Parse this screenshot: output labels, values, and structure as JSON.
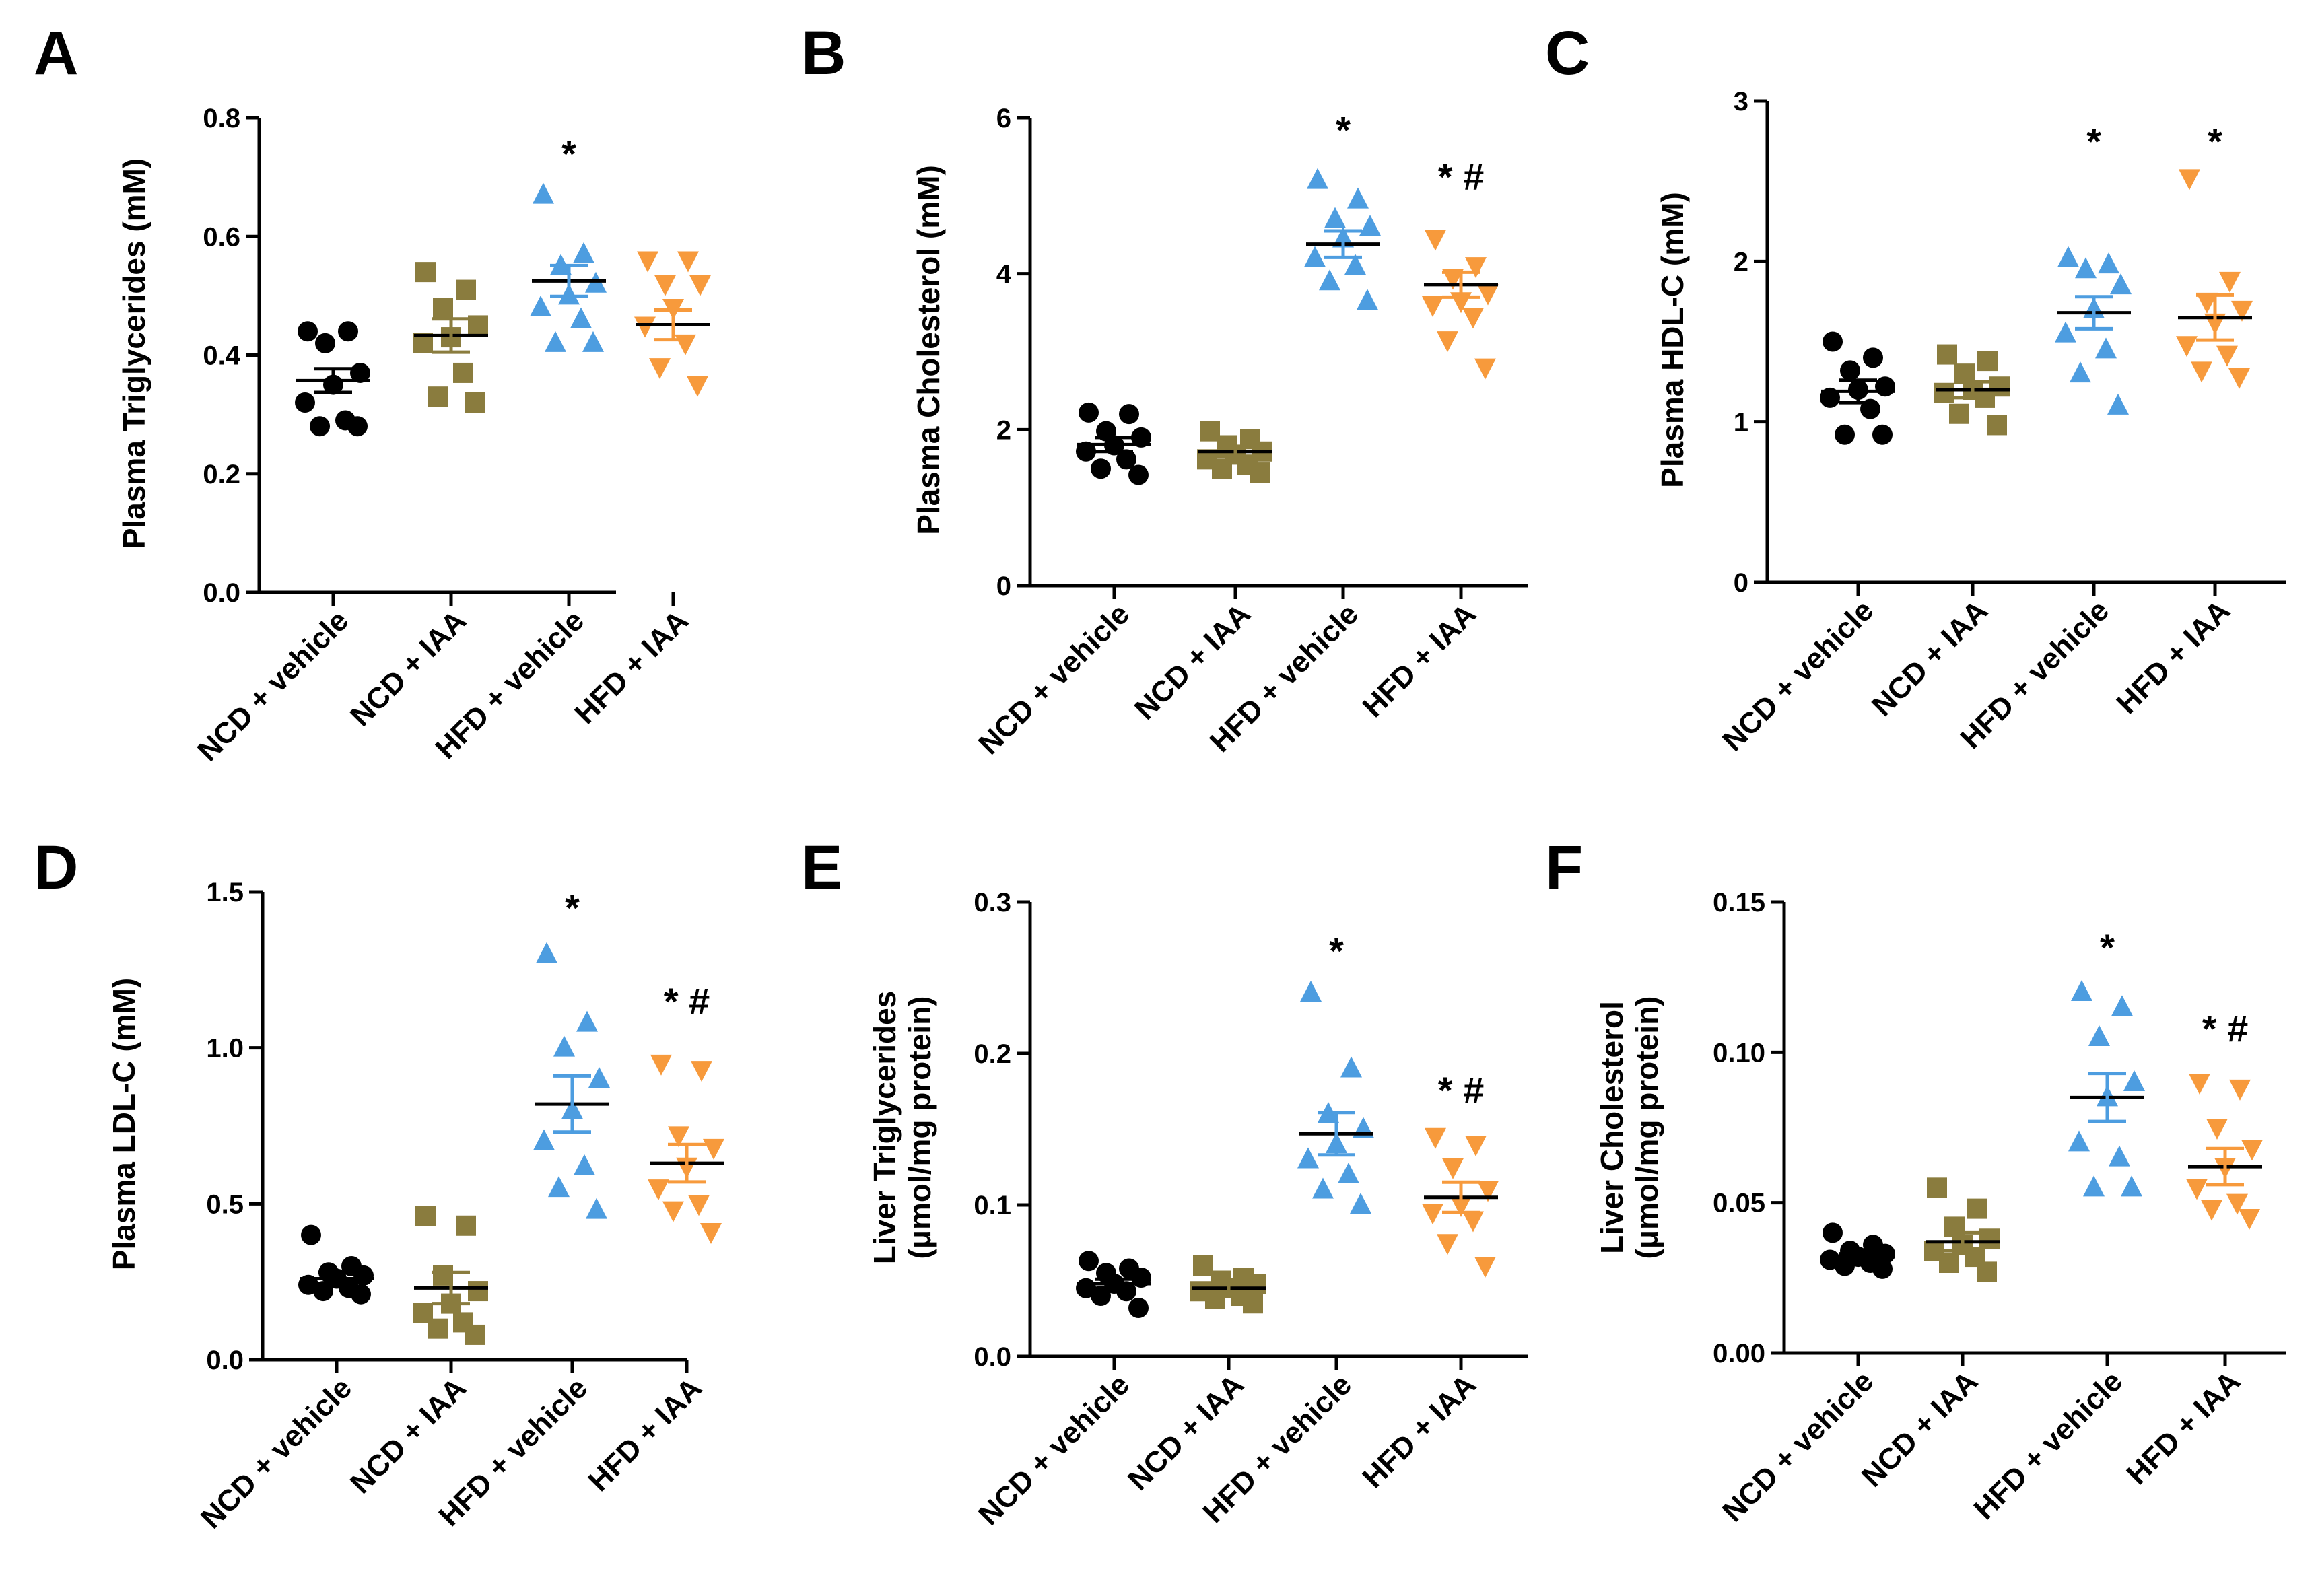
{
  "groups": [
    "NCD + vehicle",
    "NCD + IAA",
    "HFD + vehicle",
    "HFD + IAA"
  ],
  "colors": {
    "NCD + vehicle": "#000000",
    "NCD + IAA": "#8a7c3e",
    "HFD + vehicle": "#4d9de0",
    "HFD + IAA": "#f79a3c"
  },
  "markers": {
    "NCD + vehicle": "circle",
    "NCD + IAA": "square",
    "HFD + vehicle": "triangle-up",
    "HFD + IAA": "triangle-down"
  },
  "chart_data": [
    {
      "panel": "A",
      "type": "scatter",
      "title": "",
      "ylabel": [
        "Plasma Triglycerides (mM)"
      ],
      "ylim": [
        0,
        0.8
      ],
      "yticks": [
        "0.0",
        "0.2",
        "0.4",
        "0.6",
        "0.8"
      ],
      "categories": [
        "NCD + vehicle",
        "NCD + IAA",
        "HFD + vehicle",
        "HFD + IAA"
      ],
      "series": [
        {
          "name": "NCD + vehicle",
          "values": [
            0.44,
            0.44,
            0.42,
            0.37,
            0.35,
            0.32,
            0.29,
            0.28,
            0.28
          ],
          "mean": 0.357,
          "sem": 0.02
        },
        {
          "name": "NCD + IAA",
          "values": [
            0.54,
            0.51,
            0.48,
            0.45,
            0.43,
            0.42,
            0.37,
            0.33,
            0.32
          ],
          "mean": 0.433,
          "sem": 0.028
        },
        {
          "name": "HFD + vehicle",
          "values": [
            0.67,
            0.57,
            0.55,
            0.52,
            0.5,
            0.48,
            0.46,
            0.42,
            0.42
          ],
          "mean": 0.525,
          "sem": 0.026
        },
        {
          "name": "HFD + IAA",
          "values": [
            0.56,
            0.56,
            0.52,
            0.52,
            0.48,
            0.45,
            0.42,
            0.38,
            0.35
          ],
          "mean": 0.451,
          "sem": 0.025
        }
      ],
      "annotations": [
        {
          "category": "HFD + vehicle",
          "text": "*",
          "y": 0.74
        }
      ]
    },
    {
      "panel": "B",
      "type": "scatter",
      "title": "",
      "ylabel": [
        "Plasma Cholesterol (mM)"
      ],
      "ylim": [
        0,
        6
      ],
      "yticks": [
        "0",
        "2",
        "4",
        "6"
      ],
      "categories": [
        "NCD + vehicle",
        "NCD + IAA",
        "HFD + vehicle",
        "HFD + IAA"
      ],
      "series": [
        {
          "name": "NCD + vehicle",
          "values": [
            2.22,
            2.2,
            1.98,
            1.9,
            1.8,
            1.72,
            1.62,
            1.5,
            1.42
          ],
          "mean": 1.81,
          "sem": 0.09
        },
        {
          "name": "NCD + IAA",
          "values": [
            1.98,
            1.88,
            1.8,
            1.72,
            1.68,
            1.62,
            1.55,
            1.5,
            1.45
          ],
          "mean": 1.72,
          "sem": 0.06
        },
        {
          "name": "HFD + vehicle",
          "values": [
            5.2,
            4.95,
            4.7,
            4.6,
            4.45,
            4.2,
            4.1,
            3.9,
            3.65
          ],
          "mean": 4.38,
          "sem": 0.17
        },
        {
          "name": "HFD + IAA",
          "values": [
            4.45,
            4.1,
            3.95,
            3.75,
            3.65,
            3.6,
            3.45,
            3.15,
            2.8
          ],
          "mean": 3.86,
          "sem": 0.16
        }
      ],
      "annotations": [
        {
          "category": "HFD + vehicle",
          "text": "*",
          "y": 5.85
        },
        {
          "category": "HFD + IAA",
          "text": "*#",
          "y": 5.25
        }
      ]
    },
    {
      "panel": "C",
      "type": "scatter",
      "title": "",
      "ylabel": [
        "Plasma HDL-C (mM)"
      ],
      "ylim": [
        0,
        3
      ],
      "yticks": [
        "0",
        "1",
        "2",
        "3"
      ],
      "categories": [
        "NCD + vehicle",
        "NCD + IAA",
        "HFD + vehicle",
        "HFD + IAA"
      ],
      "series": [
        {
          "name": "NCD + vehicle",
          "values": [
            1.5,
            1.4,
            1.32,
            1.22,
            1.2,
            1.15,
            1.08,
            0.92,
            0.92
          ],
          "mean": 1.19,
          "sem": 0.07
        },
        {
          "name": "NCD + IAA",
          "values": [
            1.42,
            1.38,
            1.3,
            1.22,
            1.2,
            1.18,
            1.15,
            1.05,
            0.98
          ],
          "mean": 1.2,
          "sem": 0.05
        },
        {
          "name": "HFD + vehicle",
          "values": [
            2.02,
            1.98,
            1.95,
            1.85,
            1.7,
            1.55,
            1.45,
            1.3,
            1.1
          ],
          "mean": 1.68,
          "sem": 0.1
        },
        {
          "name": "HFD + IAA",
          "values": [
            2.52,
            1.88,
            1.75,
            1.7,
            1.62,
            1.48,
            1.42,
            1.32,
            1.28
          ],
          "mean": 1.65,
          "sem": 0.14
        }
      ],
      "annotations": [
        {
          "category": "HFD + vehicle",
          "text": "*",
          "y": 2.75
        },
        {
          "category": "HFD + IAA",
          "text": "*",
          "y": 2.75
        }
      ]
    },
    {
      "panel": "D",
      "type": "scatter",
      "title": "",
      "ylabel": [
        "Plasma LDL-C (mM)"
      ],
      "ylim": [
        0,
        1.5
      ],
      "yticks": [
        "0.0",
        "0.5",
        "1.0",
        "1.5"
      ],
      "categories": [
        "NCD + vehicle",
        "NCD + IAA",
        "HFD + vehicle",
        "HFD + IAA"
      ],
      "series": [
        {
          "name": "NCD + vehicle",
          "values": [
            0.4,
            0.3,
            0.28,
            0.27,
            0.26,
            0.24,
            0.23,
            0.22,
            0.21
          ],
          "mean": 0.26,
          "sem": 0.02
        },
        {
          "name": "NCD + IAA",
          "values": [
            0.46,
            0.43,
            0.27,
            0.22,
            0.18,
            0.15,
            0.12,
            0.1,
            0.08
          ],
          "mean": 0.23,
          "sem": 0.05
        },
        {
          "name": "HFD + vehicle",
          "values": [
            1.3,
            1.08,
            1.0,
            0.9,
            0.8,
            0.7,
            0.62,
            0.55,
            0.48
          ],
          "mean": 0.82,
          "sem": 0.09
        },
        {
          "name": "HFD + IAA",
          "values": [
            0.95,
            0.93,
            0.72,
            0.68,
            0.62,
            0.55,
            0.5,
            0.48,
            0.41
          ],
          "mean": 0.63,
          "sem": 0.06
        }
      ],
      "annotations": [
        {
          "category": "HFD + vehicle",
          "text": "*",
          "y": 1.45
        },
        {
          "category": "HFD + IAA",
          "text": "*#",
          "y": 1.15
        }
      ]
    },
    {
      "panel": "E",
      "type": "scatter",
      "title": "",
      "ylabel": [
        "Liver Triglycerides",
        "(μmol/mg protein)"
      ],
      "ylim": [
        0,
        0.3
      ],
      "yticks": [
        "0.0",
        "0.1",
        "0.2",
        "0.3"
      ],
      "categories": [
        "NCD + vehicle",
        "NCD + IAA",
        "HFD + vehicle",
        "HFD + IAA"
      ],
      "series": [
        {
          "name": "NCD + vehicle",
          "values": [
            0.063,
            0.058,
            0.055,
            0.052,
            0.048,
            0.045,
            0.043,
            0.04,
            0.032
          ],
          "mean": 0.048,
          "sem": 0.003
        },
        {
          "name": "NCD + IAA",
          "values": [
            0.06,
            0.052,
            0.05,
            0.048,
            0.045,
            0.043,
            0.04,
            0.038,
            0.035
          ],
          "mean": 0.045,
          "sem": 0.003
        },
        {
          "name": "HFD + vehicle",
          "values": [
            0.24,
            0.19,
            0.16,
            0.15,
            0.14,
            0.13,
            0.12,
            0.11,
            0.1
          ],
          "mean": 0.147,
          "sem": 0.014
        },
        {
          "name": "HFD + IAA",
          "values": [
            0.145,
            0.14,
            0.125,
            0.11,
            0.1,
            0.095,
            0.09,
            0.075,
            0.06
          ],
          "mean": 0.105,
          "sem": 0.01
        }
      ],
      "annotations": [
        {
          "category": "HFD + vehicle",
          "text": "*",
          "y": 0.268
        },
        {
          "category": "HFD + IAA",
          "text": "*#",
          "y": 0.176
        }
      ]
    },
    {
      "panel": "F",
      "type": "scatter",
      "title": "",
      "ylabel": [
        "Liver Cholesterol",
        "(μmol/mg protein)"
      ],
      "ylim": [
        0,
        0.15
      ],
      "yticks": [
        "0.00",
        "0.05",
        "0.10",
        "0.15"
      ],
      "categories": [
        "NCD + vehicle",
        "NCD + IAA",
        "HFD + vehicle",
        "HFD + IAA"
      ],
      "series": [
        {
          "name": "NCD + vehicle",
          "values": [
            0.04,
            0.036,
            0.034,
            0.033,
            0.032,
            0.031,
            0.03,
            0.029,
            0.028
          ],
          "mean": 0.032,
          "sem": 0.001
        },
        {
          "name": "NCD + IAA",
          "values": [
            0.055,
            0.048,
            0.042,
            0.038,
            0.036,
            0.034,
            0.032,
            0.03,
            0.027
          ],
          "mean": 0.037,
          "sem": 0.003
        },
        {
          "name": "HFD + vehicle",
          "values": [
            0.12,
            0.115,
            0.105,
            0.09,
            0.085,
            0.07,
            0.065,
            0.055,
            0.055
          ],
          "mean": 0.085,
          "sem": 0.008
        },
        {
          "name": "HFD + IAA",
          "values": [
            0.09,
            0.088,
            0.075,
            0.068,
            0.062,
            0.055,
            0.05,
            0.048,
            0.045
          ],
          "mean": 0.062,
          "sem": 0.006
        }
      ],
      "annotations": [
        {
          "category": "HFD + vehicle",
          "text": "*",
          "y": 0.135
        },
        {
          "category": "HFD + IAA",
          "text": "*#",
          "y": 0.108
        }
      ]
    }
  ]
}
